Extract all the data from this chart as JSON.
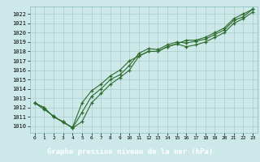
{
  "title": "Graphe pression niveau de la mer (hPa)",
  "bg_color": "#cce8e8",
  "grid_color": "#aacccc",
  "line_color": "#2d6b2d",
  "title_bg": "#2d6b2d",
  "title_fg": "#ffffff",
  "x_ticks": [
    0,
    1,
    2,
    3,
    4,
    5,
    6,
    7,
    8,
    9,
    10,
    11,
    12,
    13,
    14,
    15,
    16,
    17,
    18,
    19,
    20,
    21,
    22,
    23
  ],
  "x_labels": [
    "0",
    "1",
    "2",
    "3",
    "4",
    "5",
    "6",
    "7",
    "8",
    "9",
    "10",
    "11",
    "12",
    "13",
    "14",
    "15",
    "16",
    "17",
    "18",
    "19",
    "20",
    "21",
    "22",
    "23"
  ],
  "ylim": [
    1009.3,
    1022.8
  ],
  "yticks": [
    1010,
    1011,
    1012,
    1013,
    1014,
    1015,
    1016,
    1017,
    1018,
    1019,
    1020,
    1021,
    1022
  ],
  "series1": [
    1012.5,
    1012.0,
    1011.0,
    1010.5,
    1009.8,
    1010.5,
    1012.5,
    1013.5,
    1014.5,
    1015.2,
    1016.0,
    1017.5,
    1018.0,
    1018.0,
    1018.5,
    1018.8,
    1018.5,
    1018.7,
    1019.0,
    1019.5,
    1020.0,
    1021.0,
    1021.5,
    1022.2
  ],
  "series2": [
    1012.5,
    1012.0,
    1011.0,
    1010.5,
    1009.8,
    1011.5,
    1013.2,
    1014.0,
    1015.0,
    1015.5,
    1016.5,
    1017.8,
    1018.3,
    1018.2,
    1018.7,
    1019.0,
    1018.9,
    1019.1,
    1019.3,
    1019.8,
    1020.3,
    1021.3,
    1021.7,
    1022.5
  ],
  "series3": [
    1012.5,
    1011.8,
    1011.1,
    1010.4,
    1009.9,
    1012.5,
    1013.8,
    1014.5,
    1015.4,
    1016.0,
    1017.0,
    1017.5,
    1018.0,
    1018.0,
    1018.5,
    1018.8,
    1019.2,
    1019.2,
    1019.5,
    1020.0,
    1020.5,
    1021.5,
    1022.0,
    1022.5
  ]
}
